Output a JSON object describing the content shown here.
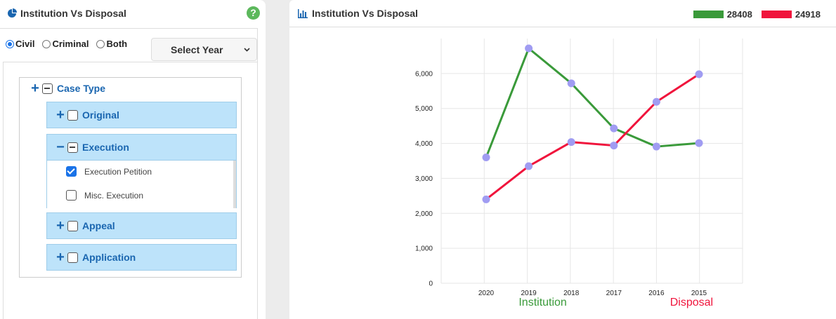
{
  "left": {
    "title": "Institution Vs Disposal",
    "help": "?",
    "radios": [
      {
        "label": "Civil",
        "checked": true
      },
      {
        "label": "Criminal",
        "checked": false
      },
      {
        "label": "Both",
        "checked": false
      }
    ],
    "year_select": "Select Year",
    "tree": {
      "root": "Case Type",
      "groups": [
        {
          "label": "Original",
          "expanded": false
        },
        {
          "label": "Execution",
          "expanded": true,
          "children": [
            {
              "label": "Execution Petition",
              "checked": true
            },
            {
              "label": "Misc. Execution",
              "checked": false
            }
          ]
        },
        {
          "label": "Appeal",
          "expanded": false
        },
        {
          "label": "Application",
          "expanded": false
        }
      ]
    }
  },
  "right": {
    "title": "Institution Vs Disposal",
    "legend": [
      {
        "value": "28408",
        "color": "#3a9a3a"
      },
      {
        "value": "24918",
        "color": "#f0143c"
      }
    ]
  },
  "chart_data": {
    "type": "line",
    "title": "",
    "categories": [
      "2020",
      "2019",
      "2018",
      "2017",
      "2016",
      "2015"
    ],
    "series": [
      {
        "name": "Institution",
        "color": "#3a9a3a",
        "values": [
          3600,
          6720,
          5720,
          4430,
          3910,
          4010
        ]
      },
      {
        "name": "Disposal",
        "color": "#f0143c",
        "values": [
          2400,
          3350,
          4040,
          3940,
          5190,
          5980
        ]
      }
    ],
    "marker_color": "#a09cf2",
    "ylim": [
      0,
      7000
    ],
    "yticks": [
      "0",
      "1,000",
      "2,000",
      "3,000",
      "4,000",
      "5,000",
      "6,000"
    ],
    "grid": true
  }
}
